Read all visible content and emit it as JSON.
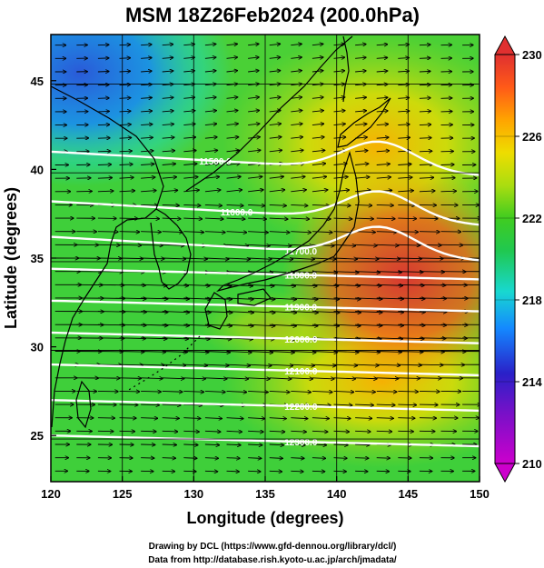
{
  "title": "MSM 18Z26Feb2024 (200.0hPa)",
  "credits": [
    "Drawing by DCL (https://www.gfd-dennou.org/library/dcl/)",
    "Data from http://database.rish.kyoto-u.ac.jp/arch/jmadata/"
  ],
  "chart_data": {
    "type": "heatmap",
    "title": "MSM 18Z26Feb2024 (200.0hPa)",
    "xlabel": "Longitude (degrees)",
    "ylabel": "Latitude  (degrees)",
    "xlim": [
      120,
      150
    ],
    "ylim": [
      22.4,
      47.6
    ],
    "x_ticks": [
      120,
      125,
      130,
      135,
      140,
      145,
      150
    ],
    "x_tick_labels": [
      "120",
      "125",
      "130",
      "135",
      "140",
      "145",
      "150"
    ],
    "y_ticks": [
      25,
      30,
      35,
      40,
      45
    ],
    "y_tick_labels": [
      "25",
      "30",
      "35",
      "40",
      "45"
    ],
    "colorbar": {
      "min": 210,
      "max": 230,
      "ticks": [
        210,
        214,
        218,
        222,
        226,
        230
      ],
      "tick_labels": [
        "210",
        "214",
        "218",
        "222",
        "226",
        "230"
      ],
      "colors": [
        "#cc00cc",
        "#2a20c8",
        "#1488ff",
        "#18d8d0",
        "#20c850",
        "#40cc20",
        "#aadd10",
        "#eedd00",
        "#ffa400",
        "#ff5a18",
        "#e03030"
      ]
    },
    "temperature_field_K": {
      "description_points": [
        {
          "lon": 121,
          "lat": 44,
          "value": 215
        },
        {
          "lon": 128,
          "lat": 46,
          "value": 218
        },
        {
          "lon": 135,
          "lat": 46,
          "value": 222
        },
        {
          "lon": 140,
          "lat": 43,
          "value": 226
        },
        {
          "lon": 143,
          "lat": 36,
          "value": 229
        },
        {
          "lon": 146,
          "lat": 33,
          "value": 229
        },
        {
          "lon": 130,
          "lat": 30,
          "value": 222
        },
        {
          "lon": 140,
          "lat": 26,
          "value": 224
        },
        {
          "lon": 122,
          "lat": 25,
          "value": 221
        }
      ]
    },
    "height_contours": [
      {
        "label": "11500.0",
        "value": 11500
      },
      {
        "label": "11600.0",
        "value": 11600
      },
      {
        "label": "11700.0",
        "value": 11700
      },
      {
        "label": "11800.0",
        "value": 11800
      },
      {
        "label": "11900.0",
        "value": 11900
      },
      {
        "label": "12000.0",
        "value": 12000
      },
      {
        "label": "12100.0",
        "value": 12100
      },
      {
        "label": "12200.0",
        "value": 12200
      },
      {
        "label": "12300.0",
        "value": 12300
      }
    ],
    "wind_vectors": "westerly flow over entire domain, strongest (longest arrows) near 30-35N"
  }
}
